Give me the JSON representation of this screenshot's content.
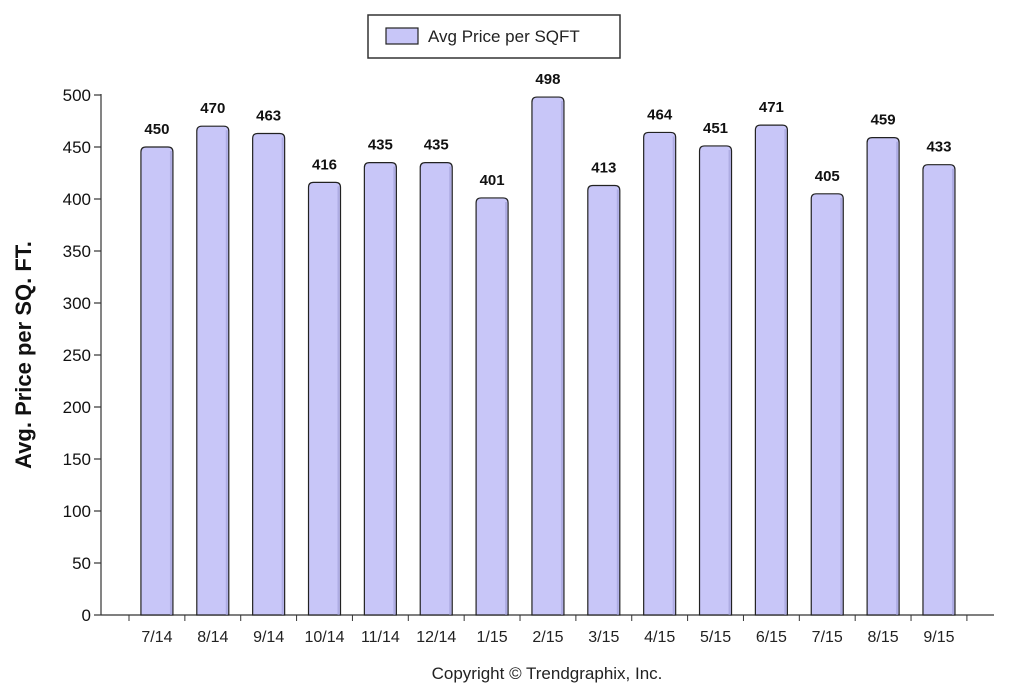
{
  "chart_data": {
    "type": "bar",
    "categories": [
      "7/14",
      "8/14",
      "9/14",
      "10/14",
      "11/14",
      "12/14",
      "1/15",
      "2/15",
      "3/15",
      "4/15",
      "5/15",
      "6/15",
      "7/15",
      "8/15",
      "9/15"
    ],
    "series": [
      {
        "name": "Avg Price per SQFT",
        "values": [
          450,
          470,
          463,
          416,
          435,
          435,
          401,
          498,
          413,
          464,
          451,
          471,
          405,
          459,
          433
        ]
      }
    ],
    "ylabel": "Avg. Price per SQ. FT.",
    "xlabel": "",
    "ylim": [
      0,
      500
    ],
    "yticks": [
      0,
      50,
      100,
      150,
      200,
      250,
      300,
      350,
      400,
      450,
      500
    ],
    "grid": false,
    "legend_position": "top",
    "data_labels": true,
    "bar_color": "#c8c6f8",
    "bar_edge_color": "#222222"
  },
  "footer": {
    "copyright": "Copyright © Trendgraphix, Inc."
  }
}
